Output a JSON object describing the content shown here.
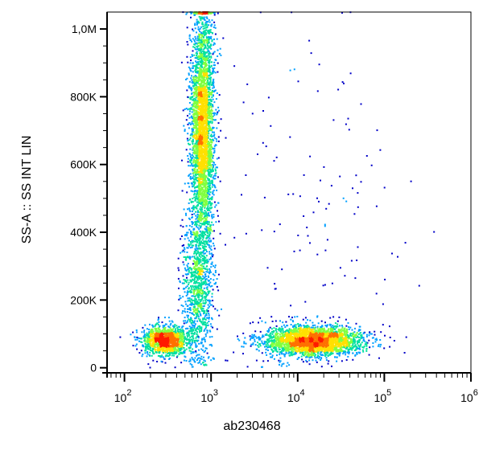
{
  "chart_data": {
    "type": "scatter",
    "title": "",
    "xlabel": "ab230468",
    "ylabel": "SS-A :: SS INT LIN",
    "x_scale": "log",
    "xlim": [
      63,
      1000000
    ],
    "ylim": [
      -15000,
      1050000
    ],
    "x_ticks": [
      {
        "value": 100,
        "base": "10",
        "exp": "2"
      },
      {
        "value": 1000,
        "base": "10",
        "exp": "3"
      },
      {
        "value": 10000,
        "base": "10",
        "exp": "4"
      },
      {
        "value": 100000,
        "base": "10",
        "exp": "5"
      },
      {
        "value": 1000000,
        "base": "10",
        "exp": "6"
      }
    ],
    "y_ticks": [
      {
        "value": 0,
        "label": "0"
      },
      {
        "value": 200000,
        "label": "200K"
      },
      {
        "value": 400000,
        "label": "400K"
      },
      {
        "value": 600000,
        "label": "600K"
      },
      {
        "value": 800000,
        "label": "800K"
      },
      {
        "value": 1000000,
        "label": "1,0M"
      }
    ],
    "grid": false,
    "colormap": [
      "#0000c8",
      "#00a0ff",
      "#00e0a0",
      "#80ff40",
      "#ffe000",
      "#ff7000",
      "#ff1a00"
    ],
    "populations": [
      {
        "center_x": 300,
        "center_y": 80000,
        "spread_log_x": 0.13,
        "spread_y": 22000,
        "count": 1400
      },
      {
        "center_x": 800,
        "center_y": 700000,
        "spread_log_x": 0.07,
        "spread_y": 190000,
        "count": 3500
      },
      {
        "center_x": 700,
        "center_y": 230000,
        "spread_log_x": 0.09,
        "spread_y": 110000,
        "count": 900
      },
      {
        "center_x": 15000,
        "center_y": 80000,
        "spread_log_x": 0.28,
        "spread_y": 22000,
        "count": 2800
      },
      {
        "center_x": 20000,
        "center_y": 400000,
        "spread_log_x": 0.6,
        "spread_y": 300000,
        "count": 140
      }
    ]
  }
}
